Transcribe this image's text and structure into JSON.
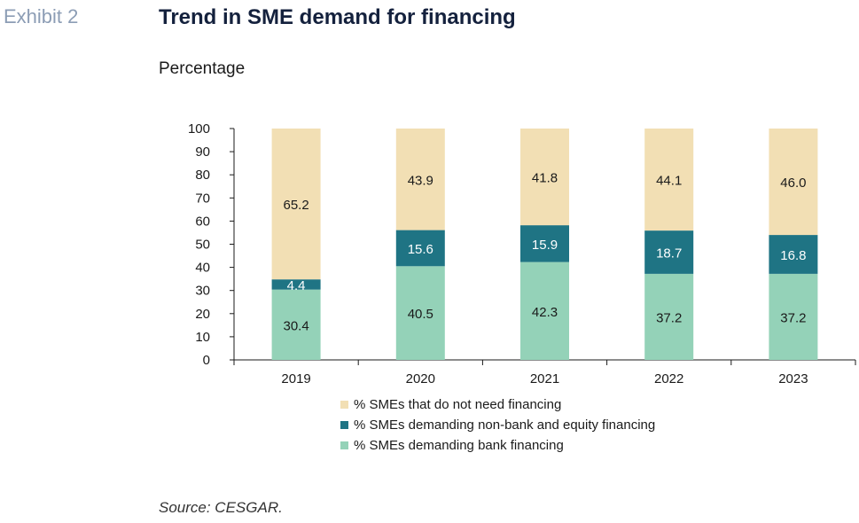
{
  "header": {
    "exhibit": "Exhibit 2",
    "title": "Trend in SME demand for financing",
    "subtitle": "Percentage"
  },
  "colors": {
    "bank": "#94d2b8",
    "nonbank": "#1f7484",
    "noneed": "#f2dfb4",
    "axis": "#1a1a1a"
  },
  "chart_data": {
    "type": "bar",
    "stacked": true,
    "categories": [
      "2019",
      "2020",
      "2021",
      "2022",
      "2023"
    ],
    "series": [
      {
        "name": "% SMEs demanding bank financing",
        "values": [
          30.4,
          40.5,
          42.3,
          37.2,
          37.2
        ],
        "color": "#94d2b8",
        "label_color": "#1a1a1a"
      },
      {
        "name": "% SMEs demanding non-bank and equity financing",
        "values": [
          4.4,
          15.6,
          15.9,
          18.7,
          16.8
        ],
        "color": "#1f7484",
        "label_color": "#ffffff"
      },
      {
        "name": "% SMEs that do not need financing",
        "values": [
          65.2,
          43.9,
          41.8,
          44.1,
          46.0
        ],
        "color": "#f2dfb4",
        "label_color": "#1a1a1a"
      }
    ],
    "value_labels": [
      [
        "30.4",
        "40.5",
        "42.3",
        "37.2",
        "37.2"
      ],
      [
        "4.4",
        "15.6",
        "15.9",
        "18.7",
        "16.8"
      ],
      [
        "65.2",
        "43.9",
        "41.8",
        "44.1",
        "46.0"
      ]
    ],
    "ylim": [
      0,
      100
    ],
    "yticks": [
      "0",
      "10",
      "20",
      "30",
      "40",
      "50",
      "60",
      "70",
      "80",
      "90",
      "100"
    ],
    "legend_order": [
      2,
      1,
      0
    ],
    "legend_position": "bottom",
    "grid": false
  },
  "footer": {
    "source": "Source: CESGAR."
  }
}
